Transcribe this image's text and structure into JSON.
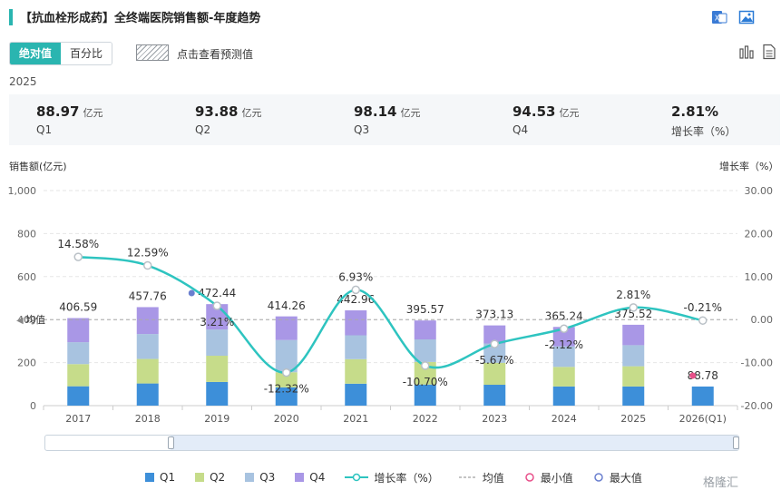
{
  "header": {
    "title": "【抗血栓形成药】全终端医院销售额-年度趋势",
    "icons": [
      "excel-icon",
      "image-icon",
      "bar-chart-icon",
      "document-icon"
    ]
  },
  "toolbar": {
    "absolute_label": "绝对值",
    "percent_label": "百分比",
    "predict_label": "点击查看预测值"
  },
  "summary": {
    "year": "2025",
    "items": [
      {
        "value": "88.97",
        "unit": "亿元",
        "label": "Q1"
      },
      {
        "value": "93.88",
        "unit": "亿元",
        "label": "Q2"
      },
      {
        "value": "98.14",
        "unit": "亿元",
        "label": "Q3"
      },
      {
        "value": "94.53",
        "unit": "亿元",
        "label": "Q4"
      },
      {
        "value": "2.81%",
        "unit": "",
        "label": "增长率（%）"
      }
    ]
  },
  "axes": {
    "left_title": "销售额(亿元)",
    "right_title": "增长率（%）",
    "mean_label": "均值"
  },
  "legend": {
    "q1": "Q1",
    "q2": "Q2",
    "q3": "Q3",
    "q4": "Q4",
    "growth": "增长率（%）",
    "mean": "均值",
    "min": "最小值",
    "max": "最大值"
  },
  "watermark": "格隆汇",
  "colors": {
    "accent": "#2ab5b0",
    "q1": "#3d8fd9",
    "q2": "#c6dc8a",
    "q3": "#a8c3e0",
    "q4": "#a997e6",
    "growth_line": "#2ec4c0",
    "min_marker": "#e8508a",
    "max_marker": "#6a7fcf"
  },
  "chart_data": {
    "type": "bar",
    "categories": [
      "2017",
      "2018",
      "2019",
      "2020",
      "2021",
      "2022",
      "2023",
      "2024",
      "2025",
      "2026(Q1)"
    ],
    "series": [
      {
        "name": "Q1",
        "values": [
          90,
          103,
          110,
          85,
          102,
          98,
          97,
          89,
          89,
          88.78
        ]
      },
      {
        "name": "Q2",
        "values": [
          103,
          114,
          122,
          70,
          114,
          105,
          102,
          91,
          94,
          0
        ]
      },
      {
        "name": "Q3",
        "values": [
          102,
          116,
          122,
          150,
          111,
          105,
          90,
          96,
          98,
          0
        ]
      },
      {
        "name": "Q4",
        "values": [
          112,
          125,
          118,
          110,
          116,
          88,
          84,
          90,
          95,
          0
        ]
      }
    ],
    "totals": [
      "406.59",
      "457.76",
      "472.44",
      "414.26",
      "442.96",
      "395.57",
      "373.13",
      "365.24",
      "375.52",
      "88.78"
    ],
    "total_values": [
      406.59,
      457.76,
      472.44,
      414.26,
      442.96,
      395.57,
      373.13,
      365.24,
      375.52,
      88.78
    ],
    "growth": {
      "name": "增长率（%）",
      "values": [
        14.58,
        12.59,
        3.21,
        -12.32,
        6.93,
        -10.7,
        -5.67,
        -2.12,
        2.81,
        -0.21
      ],
      "labels": [
        "14.58%",
        "12.59%",
        "3.21%",
        "-12.32%",
        "6.93%",
        "-10.70%",
        "-5.67%",
        "-2.12%",
        "2.81%",
        "-0.21%"
      ]
    },
    "mean_value": 400,
    "max_index": 2,
    "min_index": 9,
    "ylim": [
      0,
      1000
    ],
    "yticks": [
      "0",
      "200",
      "400",
      "600",
      "800",
      "1,000"
    ],
    "y2lim": [
      -20,
      30
    ],
    "y2ticks": [
      "-20.00",
      "-10.00",
      "0.00",
      "10.00",
      "20.00",
      "30.00"
    ]
  }
}
